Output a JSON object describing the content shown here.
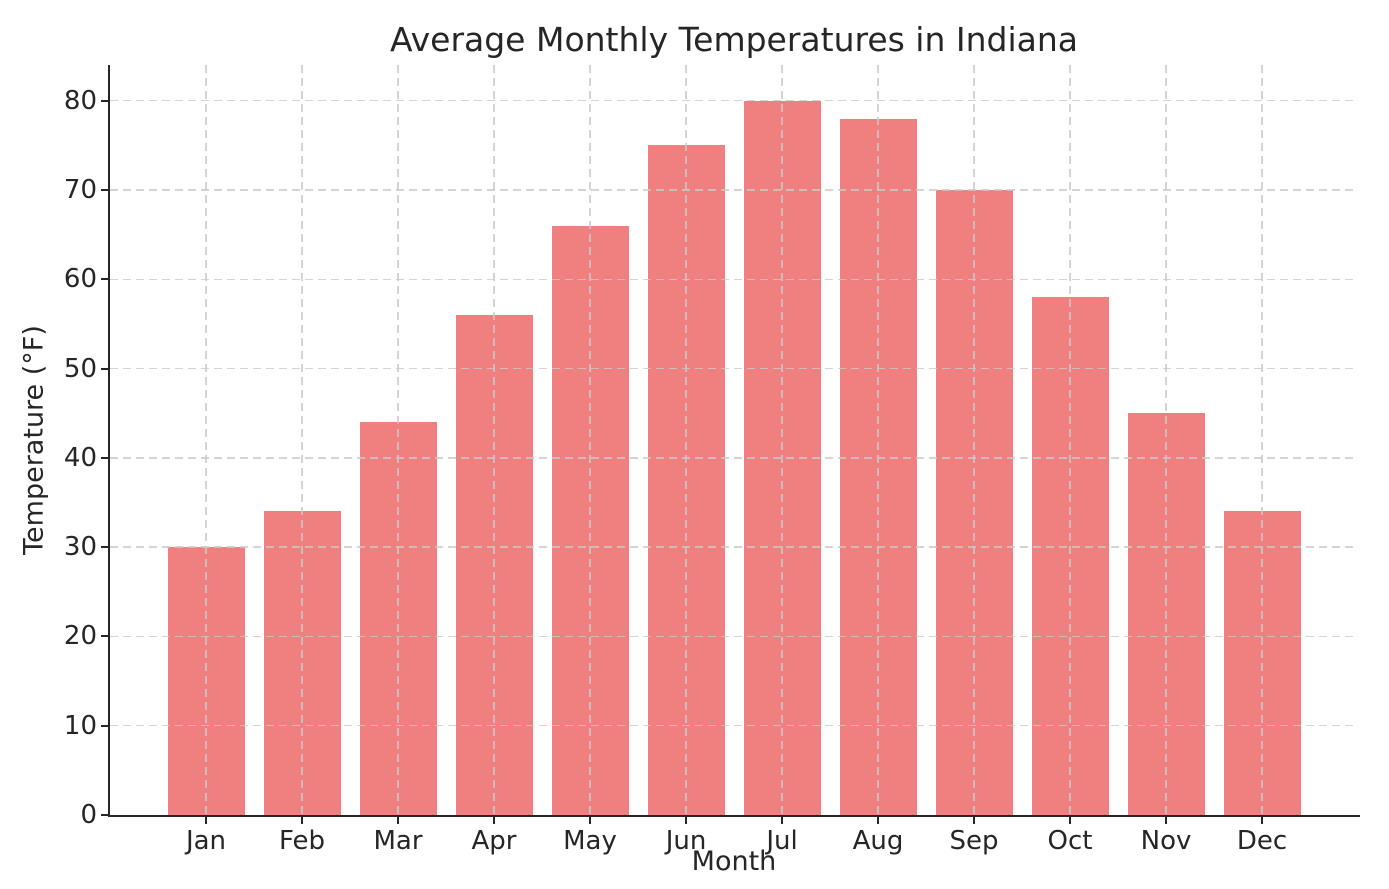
{
  "figure": {
    "background": "#ffffff"
  },
  "chart_data": {
    "type": "bar",
    "title": "Average Monthly Temperatures in Indiana",
    "xlabel": "Month",
    "ylabel": "Temperature (°F)",
    "categories": [
      "Jan",
      "Feb",
      "Mar",
      "Apr",
      "May",
      "Jun",
      "Jul",
      "Aug",
      "Sep",
      "Oct",
      "Nov",
      "Dec"
    ],
    "values": [
      30,
      34,
      44,
      56,
      66,
      75,
      80,
      78,
      70,
      58,
      45,
      34
    ],
    "ylim": [
      0,
      84
    ],
    "yticks": [
      0,
      10,
      20,
      30,
      40,
      50,
      60,
      70,
      80
    ],
    "grid": true,
    "grid_style": "dashed",
    "legend_position": "none",
    "colors": {
      "bar": "#f08080",
      "grid": "#c9c9c9",
      "axis": "#262626",
      "text": "#262626",
      "background": "#ffffff"
    }
  }
}
